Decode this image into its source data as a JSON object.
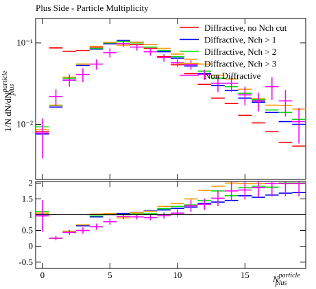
{
  "chart_data": [
    {
      "type": "errorbar",
      "title": "Plus Side - Particle Multiplicity",
      "log_y": true,
      "y_label": {
        "text": "1/N dN/dN",
        "sup": "particle",
        "sub": "plus"
      },
      "x": [
        0,
        1,
        2,
        3,
        4,
        5,
        6,
        7,
        8,
        9,
        10,
        11,
        12,
        13,
        14,
        15,
        16,
        17,
        18,
        19
      ],
      "xlim": [
        -0.5,
        19.5
      ],
      "ylim": [
        0.0021,
        0.2
      ],
      "yticks": [
        {
          "value": 0.01,
          "label": "10⁻²"
        },
        {
          "value": 0.1,
          "label": "10⁻¹"
        }
      ],
      "legend": "upper right",
      "series": [
        {
          "name": "Diffractive, no Nch cut",
          "color": "#ff0000",
          "values": [
            0.0081,
            0.087,
            0.079,
            0.081,
            0.089,
            0.098,
            0.104,
            0.096,
            0.086,
            0.068,
            0.054,
            0.042,
            0.031,
            0.021,
            0.018,
            0.0129,
            0.0104,
            0.0081,
            0.006,
            0.0054
          ]
        },
        {
          "name": "Diffractive, Nch > 1",
          "color": "#0000ff",
          "values": [
            0.0076,
            0.0163,
            0.035,
            0.053,
            0.084,
            0.098,
            0.108,
            0.102,
            0.096,
            0.078,
            0.065,
            0.052,
            0.042,
            0.03,
            0.026,
            0.021,
            0.0187,
            0.014,
            0.0108,
            0.01
          ]
        },
        {
          "name": "Diffractive, Nch > 2",
          "color": "#00dd00",
          "values": [
            0.0093,
            0.017,
            0.037,
            0.055,
            0.086,
            0.1,
            0.104,
            0.1,
            0.089,
            0.081,
            0.068,
            0.055,
            0.045,
            0.037,
            0.029,
            0.024,
            0.02,
            0.015,
            0.014,
            0.0115
          ]
        },
        {
          "name": "Diffractive, Nch > 3",
          "color": "#ff9900",
          "values": [
            0.0086,
            0.0172,
            0.038,
            0.055,
            0.091,
            0.102,
            0.094,
            0.102,
            0.096,
            0.086,
            0.073,
            0.063,
            0.055,
            0.04,
            0.036,
            0.027,
            0.0206,
            0.0172,
            0.017,
            0.0154
          ]
        },
        {
          "name": "Non Diffractive",
          "color": "#ff00ff",
          "values": [
            0.0078,
            0.022,
            0.035,
            0.041,
            0.055,
            0.076,
            0.098,
            0.089,
            0.078,
            0.066,
            0.057,
            0.054,
            0.041,
            0.032,
            0.032,
            0.023,
            0.0194,
            0.029,
            0.0194,
            0.0108
          ],
          "errors": [
            0.004,
            0.005,
            0.006,
            0.008,
            0.008,
            0.01,
            0.008,
            0.008,
            0.008,
            0.007,
            0.006,
            0.007,
            0.006,
            0.007,
            0.007,
            0.006,
            0.005,
            0.009,
            0.007,
            0.005
          ]
        }
      ]
    },
    {
      "type": "errorbar",
      "log_y": false,
      "x_label": {
        "text": "N",
        "sup": "particle",
        "sub": "plus"
      },
      "x": [
        0,
        1,
        2,
        3,
        4,
        5,
        6,
        7,
        8,
        9,
        10,
        11,
        12,
        13,
        14,
        15,
        16,
        17,
        18,
        19
      ],
      "xlim": [
        -0.5,
        19.5
      ],
      "xticks": [
        0,
        5,
        10,
        15
      ],
      "ylim": [
        -0.7,
        2.05
      ],
      "yticks": [
        2,
        1.5,
        1,
        0.5,
        0,
        -0.5
      ],
      "series": [
        {
          "color": "#0000ff",
          "values": [
            1.0,
            0.25,
            0.44,
            0.65,
            0.93,
            1.0,
            1.04,
            1.07,
            1.12,
            1.15,
            1.2,
            1.24,
            1.36,
            1.4,
            1.45,
            1.6,
            1.55,
            1.62,
            1.68,
            1.7
          ]
        },
        {
          "color": "#00dd00",
          "values": [
            1.1,
            0.26,
            0.47,
            0.68,
            0.96,
            1.02,
            1.0,
            1.04,
            1.03,
            1.19,
            1.26,
            1.31,
            1.45,
            1.75,
            1.6,
            1.85,
            1.9,
            1.87,
            2.0,
            2.0
          ]
        },
        {
          "color": "#ff9900",
          "values": [
            1.05,
            0.25,
            0.48,
            0.68,
            1.02,
            1.04,
            0.9,
            1.06,
            1.11,
            1.26,
            1.35,
            1.5,
            1.77,
            1.9,
            2.0,
            1.98,
            1.98,
            1.98,
            1.98,
            1.98
          ]
        },
        {
          "color": "#ff00ff",
          "values": [
            0.96,
            0.26,
            0.44,
            0.5,
            0.62,
            0.78,
            0.94,
            0.93,
            0.91,
            0.97,
            1.05,
            1.28,
            1.33,
            1.52,
            1.75,
            1.78,
            1.86,
            1.98,
            1.98,
            1.98
          ],
          "errors": [
            0.5,
            0.07,
            0.08,
            0.1,
            0.1,
            0.1,
            0.08,
            0.08,
            0.09,
            0.1,
            0.12,
            0.2,
            0.18,
            0.25,
            0.3,
            0.3,
            0.3,
            0.4,
            0.4,
            0.4
          ]
        }
      ]
    }
  ]
}
